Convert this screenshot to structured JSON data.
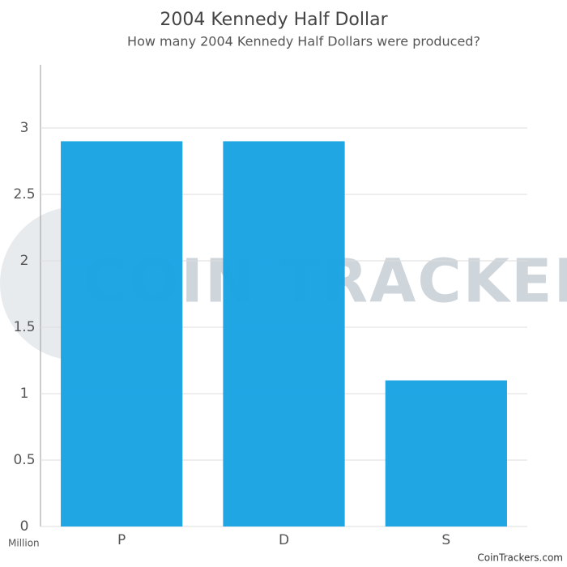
{
  "chart_data": {
    "type": "bar",
    "title": "2004 Kennedy Half Dollar",
    "subtitle": "How many 2004 Kennedy Half Dollars were produced?",
    "y_unit": "Million",
    "categories": [
      "P",
      "D",
      "S"
    ],
    "values": [
      2.9,
      2.9,
      1.1
    ],
    "color": "#1aa3e3",
    "ylim": [
      0,
      3.5
    ],
    "yticks": [
      0,
      0.5,
      1,
      1.5,
      2,
      2.5,
      3
    ],
    "grid": true,
    "watermark": "COIN TRACKERS",
    "source": "CoinTrackers.com"
  }
}
